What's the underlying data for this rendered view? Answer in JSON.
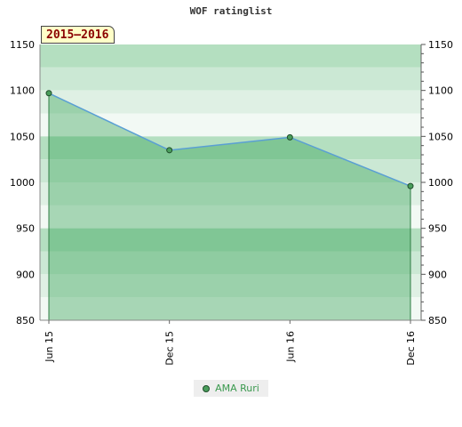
{
  "chart_data": {
    "type": "area",
    "title": "WOF ratinglist",
    "period_label": "2015–2016",
    "categories": [
      "Jun 15",
      "Dec 15",
      "Jun 16",
      "Dec 16"
    ],
    "series": [
      {
        "name": "AMA Ruri",
        "values": [
          1097,
          1035,
          1049,
          996
        ]
      }
    ],
    "ylim": [
      850,
      1150
    ],
    "yticks": [
      850,
      900,
      950,
      1000,
      1050,
      1100,
      1150
    ],
    "y_axis_both_sides": true,
    "grid": true,
    "legend_position": "bottom-center",
    "colors": {
      "line": "#5a9fd4",
      "fill": "#2e9e4f",
      "marker": "#4a9e5c",
      "bands": [
        "#b4dfc0",
        "#cbe8d4",
        "#dff0e4",
        "#f2f9f4"
      ]
    }
  }
}
